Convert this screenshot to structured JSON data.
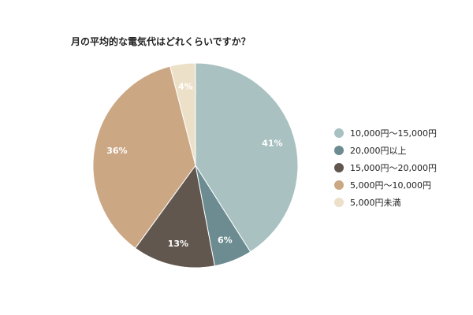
{
  "chart_data": {
    "type": "pie",
    "title": "月の平均的な電気代はどれくらいですか？",
    "slices": [
      {
        "label": "10,000円～15,000円",
        "value": 41,
        "display": "41%",
        "color": "#a9c1c1"
      },
      {
        "label": "20,000円以上",
        "value": 6,
        "display": "6%",
        "color": "#6d8c92"
      },
      {
        "label": "15,000円～20,000円",
        "value": 13,
        "display": "13%",
        "color": "#62574e"
      },
      {
        "label": "5,000円～10,000円",
        "value": 36,
        "display": "36%",
        "color": "#cca784"
      },
      {
        "label": "5,000円未満",
        "value": 4,
        "display": "4%",
        "color": "#ede0c8"
      }
    ],
    "legend_position": "right"
  }
}
